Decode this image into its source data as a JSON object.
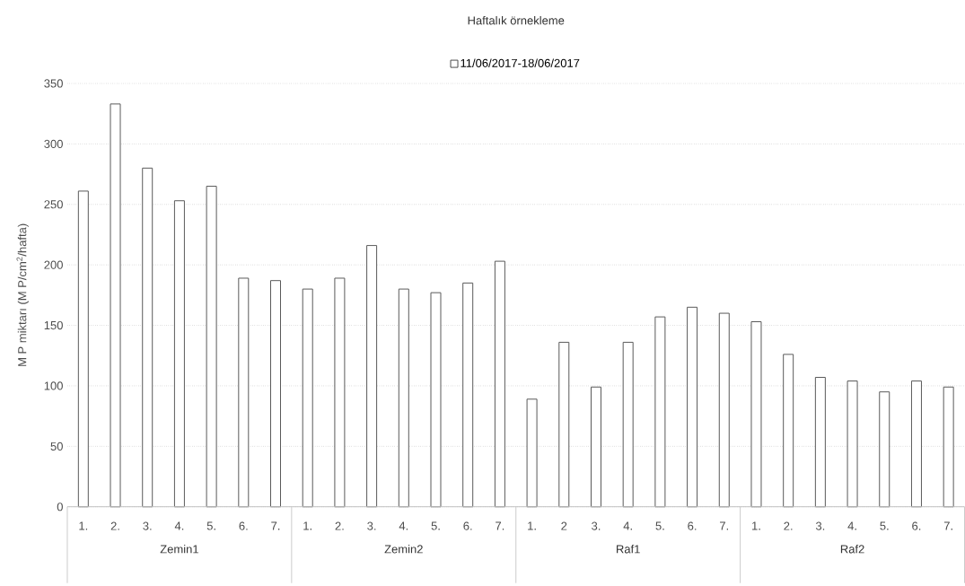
{
  "chart_data": {
    "type": "bar",
    "title": "Haftalık örnekleme",
    "ylabel": "M P  miktarı (M P/cm$^{2}$/hafta)",
    "categories": [
      "1.",
      "2.",
      "3.",
      "4.",
      "5.",
      "6.",
      "7.",
      "1.",
      "2.",
      "3.",
      "4.",
      "5.",
      "6.",
      "7.",
      "1.",
      "2",
      "3.",
      "4.",
      "5.",
      "6.",
      "7.",
      "1.",
      "2.",
      "3.",
      "4.",
      "5.",
      "6.",
      "7."
    ],
    "series": [
      {
        "name": "11/06/2017-18/06/2017",
        "color": "#ffffff",
        "values": [
          261,
          333,
          280,
          253,
          265,
          189,
          187,
          180,
          189,
          216,
          180,
          177,
          185,
          203,
          89,
          136,
          99,
          136,
          157,
          165,
          160,
          153,
          126,
          107,
          104,
          95,
          104,
          99
        ]
      }
    ],
    "annotations": [
      "Zemin1",
      "Zemin2",
      "Raf1",
      "Raf2"
    ],
    "ylim": [
      0,
      350
    ],
    "yticks": [
      0,
      50,
      100,
      150,
      200,
      250,
      300,
      350
    ],
    "grid": "y",
    "legend": "top"
  }
}
